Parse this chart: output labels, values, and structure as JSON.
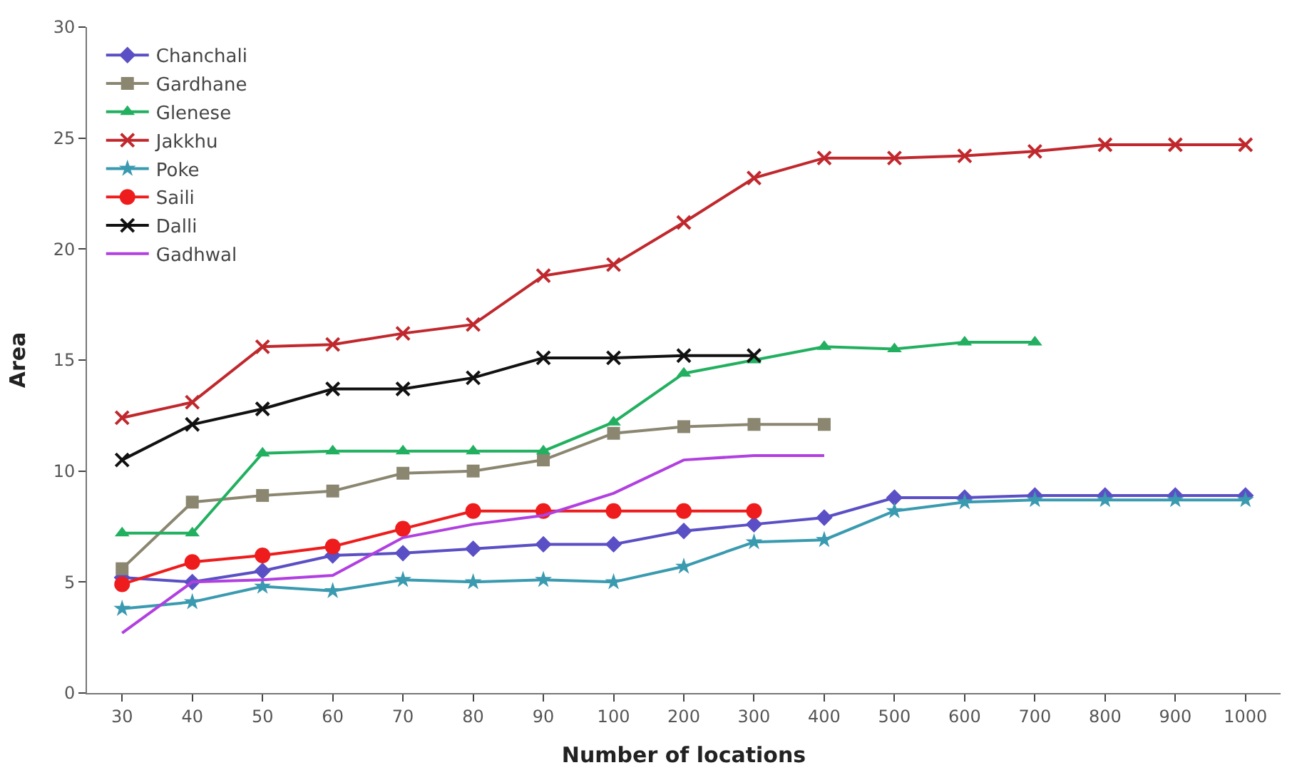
{
  "chart_data": {
    "type": "line",
    "xlabel": "Number of locations",
    "ylabel": "Area",
    "categories": [
      "30",
      "40",
      "50",
      "60",
      "70",
      "80",
      "90",
      "100",
      "200",
      "300",
      "400",
      "500",
      "600",
      "700",
      "800",
      "900",
      "1000"
    ],
    "ylim": [
      0,
      30
    ],
    "yticks": [
      0,
      5,
      10,
      15,
      20,
      25,
      30
    ],
    "grid": false,
    "legend": "top left",
    "series": [
      {
        "name": "Chanchali",
        "color": "#5a4fc4",
        "marker": "diamond",
        "values": [
          5.2,
          5.0,
          5.5,
          6.2,
          6.3,
          6.5,
          6.7,
          6.7,
          7.3,
          7.6,
          7.9,
          8.8,
          8.8,
          8.9,
          8.9,
          8.9,
          8.9
        ]
      },
      {
        "name": "Gardhane",
        "color": "#8b8670",
        "marker": "square",
        "values": [
          5.6,
          8.6,
          8.9,
          9.1,
          9.9,
          10.0,
          10.5,
          11.7,
          12.0,
          12.1,
          12.1,
          null,
          null,
          null,
          null,
          null,
          null
        ]
      },
      {
        "name": "Glenese",
        "color": "#22b060",
        "marker": "triangle",
        "values": [
          7.2,
          7.2,
          10.8,
          10.9,
          10.9,
          10.9,
          10.9,
          12.2,
          14.4,
          15.0,
          15.6,
          15.5,
          15.8,
          15.8,
          null,
          null,
          null
        ]
      },
      {
        "name": "Jakkhu",
        "color": "#c0282d",
        "marker": "cross",
        "values": [
          12.4,
          13.1,
          15.6,
          15.7,
          16.2,
          16.6,
          18.8,
          19.3,
          21.2,
          23.2,
          24.1,
          24.1,
          24.2,
          24.4,
          24.7,
          24.7,
          24.7
        ]
      },
      {
        "name": "Poke",
        "color": "#3a9ab0",
        "marker": "star",
        "values": [
          3.8,
          4.1,
          4.8,
          4.6,
          5.1,
          5.0,
          5.1,
          5.0,
          5.7,
          6.8,
          6.9,
          8.2,
          8.6,
          8.7,
          8.7,
          8.7,
          8.7
        ]
      },
      {
        "name": "Saili",
        "color": "#ee1c1c",
        "marker": "circle",
        "values": [
          4.9,
          5.9,
          6.2,
          6.6,
          7.4,
          8.2,
          8.2,
          8.2,
          8.2,
          8.2,
          null,
          null,
          null,
          null,
          null,
          null,
          null
        ]
      },
      {
        "name": "Dalli",
        "color": "#111111",
        "marker": "cross",
        "values": [
          10.5,
          12.1,
          12.8,
          13.7,
          13.7,
          14.2,
          15.1,
          15.1,
          15.2,
          15.2,
          null,
          null,
          null,
          null,
          null,
          null,
          null
        ]
      },
      {
        "name": "Gadhwal",
        "color": "#b040e0",
        "marker": "none",
        "values": [
          2.7,
          5.0,
          5.1,
          5.3,
          7.0,
          7.6,
          8.0,
          9.0,
          10.5,
          10.7,
          10.7,
          null,
          null,
          null,
          null,
          null,
          null
        ]
      }
    ]
  }
}
